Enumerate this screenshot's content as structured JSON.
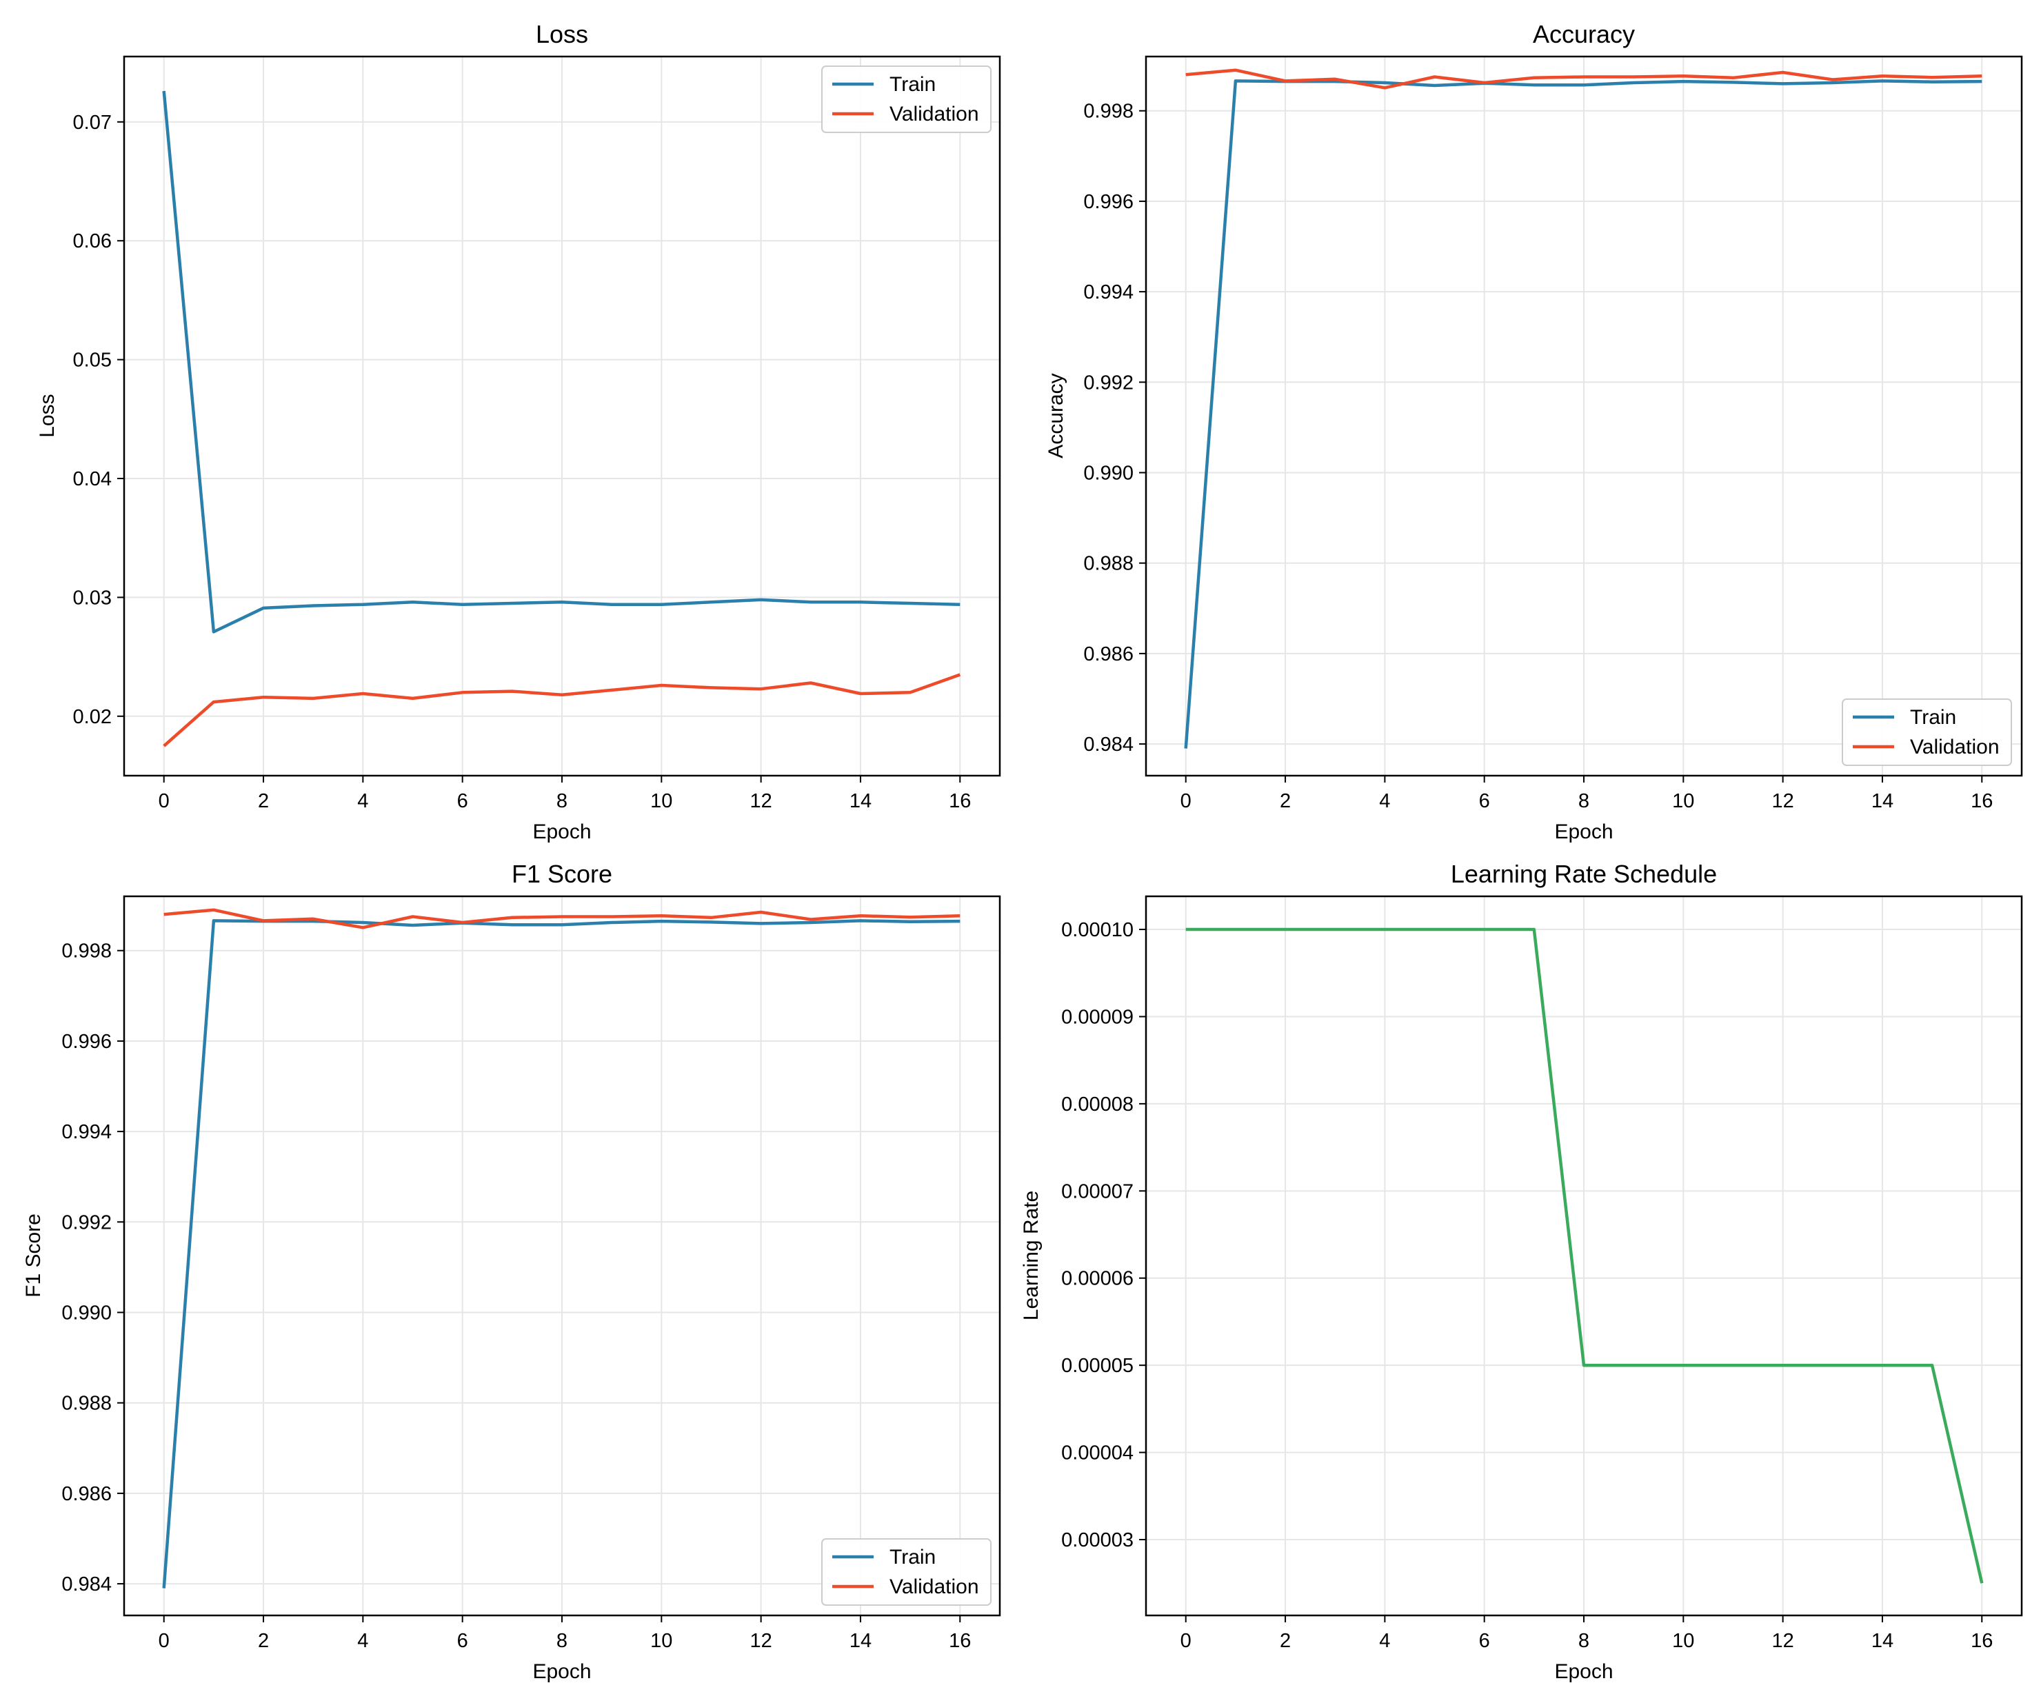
{
  "chart_data": [
    {
      "type": "line",
      "title": "Loss",
      "xlabel": "Epoch",
      "ylabel": "Loss",
      "xlim": [
        -0.8,
        16.8
      ],
      "ylim": [
        0.015,
        0.0755
      ],
      "xticks": [
        0,
        2,
        4,
        6,
        8,
        10,
        12,
        14,
        16
      ],
      "yticks": [
        0.02,
        0.03,
        0.04,
        0.05,
        0.06,
        0.07
      ],
      "ytick_labels": [
        "0.02",
        "0.03",
        "0.04",
        "0.05",
        "0.06",
        "0.07"
      ],
      "grid": true,
      "legend_position": "top-right",
      "x": [
        0,
        1,
        2,
        3,
        4,
        5,
        6,
        7,
        8,
        9,
        10,
        11,
        12,
        13,
        14,
        15,
        16
      ],
      "series": [
        {
          "name": "Train",
          "color": "#2a7fab",
          "values": [
            0.0726,
            0.0271,
            0.0291,
            0.0293,
            0.0294,
            0.0296,
            0.0294,
            0.0295,
            0.0296,
            0.0294,
            0.0294,
            0.0296,
            0.0298,
            0.0296,
            0.0296,
            0.0295,
            0.0294
          ]
        },
        {
          "name": "Validation",
          "color": "#ee4b2b",
          "values": [
            0.0175,
            0.0212,
            0.0216,
            0.0215,
            0.0219,
            0.0215,
            0.022,
            0.0221,
            0.0218,
            0.0222,
            0.0226,
            0.0224,
            0.0223,
            0.0228,
            0.0219,
            0.022,
            0.0235
          ]
        }
      ]
    },
    {
      "type": "line",
      "title": "Accuracy",
      "xlabel": "Epoch",
      "ylabel": "Accuracy",
      "xlim": [
        -0.8,
        16.8
      ],
      "ylim": [
        0.9833,
        0.9992
      ],
      "xticks": [
        0,
        2,
        4,
        6,
        8,
        10,
        12,
        14,
        16
      ],
      "yticks": [
        0.984,
        0.986,
        0.988,
        0.99,
        0.992,
        0.994,
        0.996,
        0.998
      ],
      "ytick_labels": [
        "0.984",
        "0.986",
        "0.988",
        "0.990",
        "0.992",
        "0.994",
        "0.996",
        "0.998"
      ],
      "grid": true,
      "legend_position": "bottom-right",
      "x": [
        0,
        1,
        2,
        3,
        4,
        5,
        6,
        7,
        8,
        9,
        10,
        11,
        12,
        13,
        14,
        15,
        16
      ],
      "series": [
        {
          "name": "Train",
          "color": "#2a7fab",
          "values": [
            0.9839,
            0.99866,
            0.99865,
            0.99865,
            0.99862,
            0.99856,
            0.99861,
            0.99857,
            0.99857,
            0.99862,
            0.99865,
            0.99863,
            0.9986,
            0.99862,
            0.99866,
            0.99864,
            0.99865
          ]
        },
        {
          "name": "Validation",
          "color": "#ee4b2b",
          "values": [
            0.9988,
            0.9989,
            0.99866,
            0.9987,
            0.99851,
            0.99875,
            0.99862,
            0.99873,
            0.99875,
            0.99875,
            0.99877,
            0.99873,
            0.99885,
            0.99869,
            0.99877,
            0.99874,
            0.99877
          ]
        }
      ]
    },
    {
      "type": "line",
      "title": "F1 Score",
      "xlabel": "Epoch",
      "ylabel": "F1 Score",
      "xlim": [
        -0.8,
        16.8
      ],
      "ylim": [
        0.9833,
        0.9992
      ],
      "xticks": [
        0,
        2,
        4,
        6,
        8,
        10,
        12,
        14,
        16
      ],
      "yticks": [
        0.984,
        0.986,
        0.988,
        0.99,
        0.992,
        0.994,
        0.996,
        0.998
      ],
      "ytick_labels": [
        "0.984",
        "0.986",
        "0.988",
        "0.990",
        "0.992",
        "0.994",
        "0.996",
        "0.998"
      ],
      "grid": true,
      "legend_position": "bottom-right",
      "x": [
        0,
        1,
        2,
        3,
        4,
        5,
        6,
        7,
        8,
        9,
        10,
        11,
        12,
        13,
        14,
        15,
        16
      ],
      "series": [
        {
          "name": "Train",
          "color": "#2a7fab",
          "values": [
            0.9839,
            0.99866,
            0.99865,
            0.99865,
            0.99862,
            0.99856,
            0.99861,
            0.99857,
            0.99857,
            0.99862,
            0.99865,
            0.99863,
            0.9986,
            0.99862,
            0.99866,
            0.99864,
            0.99865
          ]
        },
        {
          "name": "Validation",
          "color": "#ee4b2b",
          "values": [
            0.9988,
            0.9989,
            0.99866,
            0.9987,
            0.99851,
            0.99875,
            0.99862,
            0.99873,
            0.99875,
            0.99875,
            0.99877,
            0.99873,
            0.99885,
            0.99869,
            0.99877,
            0.99874,
            0.99877
          ]
        }
      ]
    },
    {
      "type": "line",
      "title": "Learning Rate Schedule",
      "xlabel": "Epoch",
      "ylabel": "Learning Rate",
      "xlim": [
        -0.8,
        16.8
      ],
      "ylim": [
        2.13e-05,
        0.0001038
      ],
      "xticks": [
        0,
        2,
        4,
        6,
        8,
        10,
        12,
        14,
        16
      ],
      "yticks": [
        3e-05,
        4e-05,
        5e-05,
        6e-05,
        7e-05,
        8e-05,
        9e-05,
        0.0001
      ],
      "ytick_labels": [
        "0.00003",
        "0.00004",
        "0.00005",
        "0.00006",
        "0.00007",
        "0.00008",
        "0.00009",
        "0.00010"
      ],
      "grid": true,
      "legend_position": "none",
      "x": [
        0,
        1,
        2,
        3,
        4,
        5,
        6,
        7,
        8,
        9,
        10,
        11,
        12,
        13,
        14,
        15,
        16
      ],
      "series": [
        {
          "color": "#3aaa5c",
          "values": [
            0.0001,
            0.0001,
            0.0001,
            0.0001,
            0.0001,
            0.0001,
            0.0001,
            0.0001,
            5e-05,
            5e-05,
            5e-05,
            5e-05,
            5e-05,
            5e-05,
            5e-05,
            5e-05,
            2.5e-05
          ]
        }
      ]
    }
  ]
}
